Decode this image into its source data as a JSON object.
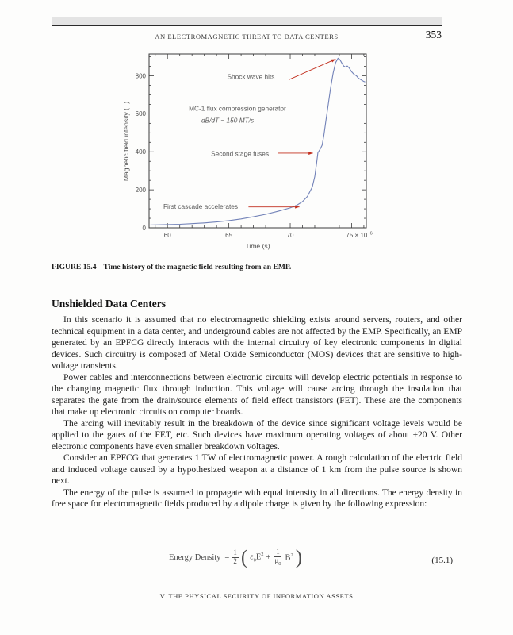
{
  "header": {
    "running_title": "AN ELECTROMAGNETIC THREAT TO DATA CENTERS",
    "page_number": "353"
  },
  "chart_data": {
    "type": "line",
    "xlabel": "Time (s)",
    "ylabel": "Magnetic field intensity (T)",
    "xlim": [
      58.5,
      76.2
    ],
    "ylim": [
      0,
      915
    ],
    "x_ticks": [
      60,
      65,
      70,
      75
    ],
    "x_minor_step": 1,
    "x_suffix_base": " × 10",
    "x_suffix_exp": "−6",
    "y_ticks": [
      0,
      200,
      400,
      600,
      800
    ],
    "y_minor_step": 50,
    "line_color": "#7282b8",
    "annotation_color": "#c22f1e",
    "frame_color": "#3c3c3c",
    "series": [
      {
        "name": "Magnetic field intensity",
        "points": [
          [
            58.6,
            15
          ],
          [
            60,
            17
          ],
          [
            61,
            19
          ],
          [
            62,
            22
          ],
          [
            63,
            26
          ],
          [
            64,
            31
          ],
          [
            65,
            38
          ],
          [
            66,
            47
          ],
          [
            67,
            58
          ],
          [
            68,
            71
          ],
          [
            69,
            87
          ],
          [
            70,
            105
          ],
          [
            70.5,
            118
          ],
          [
            71,
            138
          ],
          [
            71.4,
            165
          ],
          [
            71.8,
            215
          ],
          [
            72.0,
            270
          ],
          [
            72.15,
            340
          ],
          [
            72.25,
            395
          ],
          [
            72.45,
            415
          ],
          [
            72.6,
            435
          ],
          [
            72.75,
            490
          ],
          [
            72.9,
            560
          ],
          [
            73.1,
            650
          ],
          [
            73.3,
            740
          ],
          [
            73.5,
            815
          ],
          [
            73.7,
            870
          ],
          [
            73.9,
            893
          ],
          [
            74.05,
            885
          ],
          [
            74.2,
            868
          ],
          [
            74.35,
            852
          ],
          [
            74.5,
            846
          ],
          [
            74.65,
            852
          ],
          [
            74.8,
            842
          ],
          [
            75.0,
            822
          ],
          [
            75.2,
            808
          ],
          [
            75.4,
            800
          ],
          [
            75.55,
            788
          ],
          [
            75.75,
            780
          ],
          [
            75.95,
            772
          ],
          [
            76.1,
            768
          ]
        ]
      }
    ],
    "annotations": [
      {
        "text": "Shock wave hits",
        "x": 66.8,
        "y": 795,
        "arrow": [
          69.9,
          780,
          73.7,
          888
        ]
      },
      {
        "text": "MC-1 flux compression generator",
        "x": 65.7,
        "y": 628
      },
      {
        "text": "dB/dT ~ 150 MT/s",
        "x": 64.9,
        "y": 566,
        "italic": true
      },
      {
        "text": "Second stage fuses",
        "x": 65.9,
        "y": 390,
        "arrow": [
          69.0,
          393,
          71.85,
          393
        ]
      },
      {
        "text": "First cascade accelerates",
        "x": 62.7,
        "y": 112,
        "arrow": [
          66.6,
          110,
          70.75,
          110
        ]
      }
    ]
  },
  "figure": {
    "caption_label": "FIGURE 15.4",
    "caption_text": "Time history of the magnetic field resulting from an EMP."
  },
  "section": {
    "heading": "Unshielded Data Centers",
    "paragraphs": [
      "In this scenario it is assumed that no electromagnetic shielding exists around servers, routers, and other technical equipment in a data center, and underground cables are not affected by the EMP. Specifically, an EMP generated by an EPFCG directly interacts with the internal circuitry of key electronic components in digital devices. Such circuitry is composed of Metal Oxide Semiconductor (MOS) devices that are sensitive to high-voltage transients.",
      "Power cables and interconnections between electronic circuits will develop electric potentials in response to the changing magnetic flux through induction. This voltage will cause arcing through the insulation that separates the gate from the drain/source elements of field effect transistors (FET). These are the components that make up electronic circuits on computer boards.",
      "The arcing will inevitably result in the breakdown of the device since significant voltage levels would be applied to the gates of the FET, etc. Such devices have maximum operating voltages of about ±20 V. Other electronic components have even smaller breakdown voltages.",
      "Consider an EPFCG that generates 1 TW of electromagnetic power. A rough calculation of the electric field and induced voltage caused by a hypothesized weapon at a distance of 1 km from the pulse source is shown next.",
      "The energy of the pulse is assumed to propagate with equal intensity in all directions. The energy density in free space for electromagnetic fields produced by a dipole charge is given by the following expression:"
    ]
  },
  "equation": {
    "lhs": "Energy Density",
    "equals": "=",
    "f1num": "1",
    "f1den": "2",
    "open_paren": "(",
    "t1a": "ε",
    "t1sub": "0",
    "t1b": "E",
    "t1sup": "2",
    "plus": "+",
    "f2num": "1",
    "f2den_a": "μ",
    "f2den_sub": "0",
    "t2a": "B",
    "t2sup": "2",
    "close_paren": ")",
    "number": "(15.1)"
  },
  "footer": {
    "text": "V. THE PHYSICAL SECURITY OF INFORMATION ASSETS"
  }
}
